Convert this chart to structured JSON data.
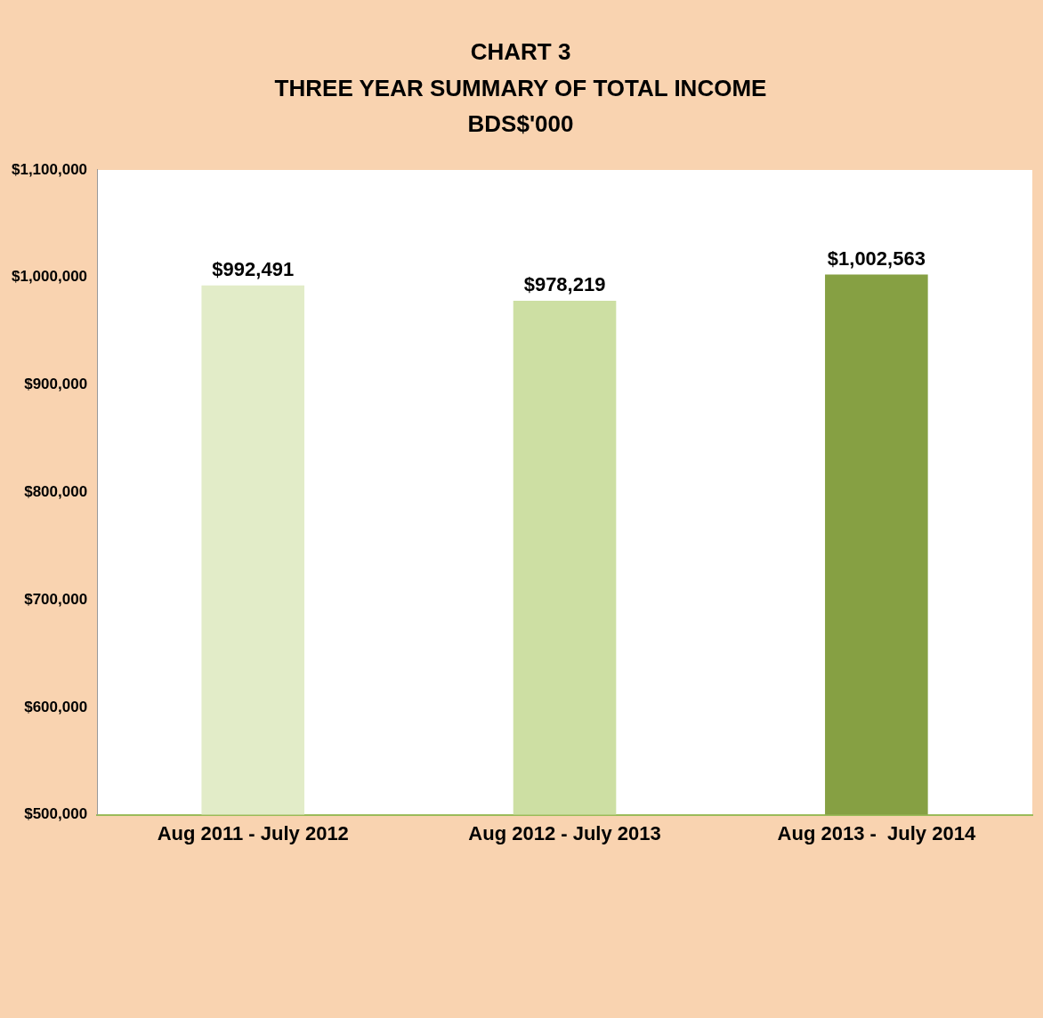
{
  "chart_data": {
    "type": "bar",
    "title": "CHART 3\nTHREE YEAR SUMMARY OF TOTAL INCOME\nBDS$'000",
    "categories": [
      "Aug 2011 - July 2012",
      "Aug 2012 - July 2013",
      "Aug 2013 -  July 2014"
    ],
    "values": [
      992491,
      978219,
      1002563
    ],
    "colors": [
      "#e2ecc8",
      "#cddfa3",
      "#86a043"
    ],
    "value_labels": [
      "$992,491",
      "$978,219",
      "$1,002,563"
    ],
    "ylim": [
      500000,
      1100000
    ],
    "yticks": [
      {
        "value": 500000,
        "label": "$500,000"
      },
      {
        "value": 600000,
        "label": "$600,000"
      },
      {
        "value": 700000,
        "label": "$700,000"
      },
      {
        "value": 800000,
        "label": "$800,000"
      },
      {
        "value": 900000,
        "label": "$900,000"
      },
      {
        "value": 1000000,
        "label": "$1,000,000"
      },
      {
        "value": 1100000,
        "label": "$1,100,000"
      }
    ],
    "grid": false,
    "legend": false
  }
}
